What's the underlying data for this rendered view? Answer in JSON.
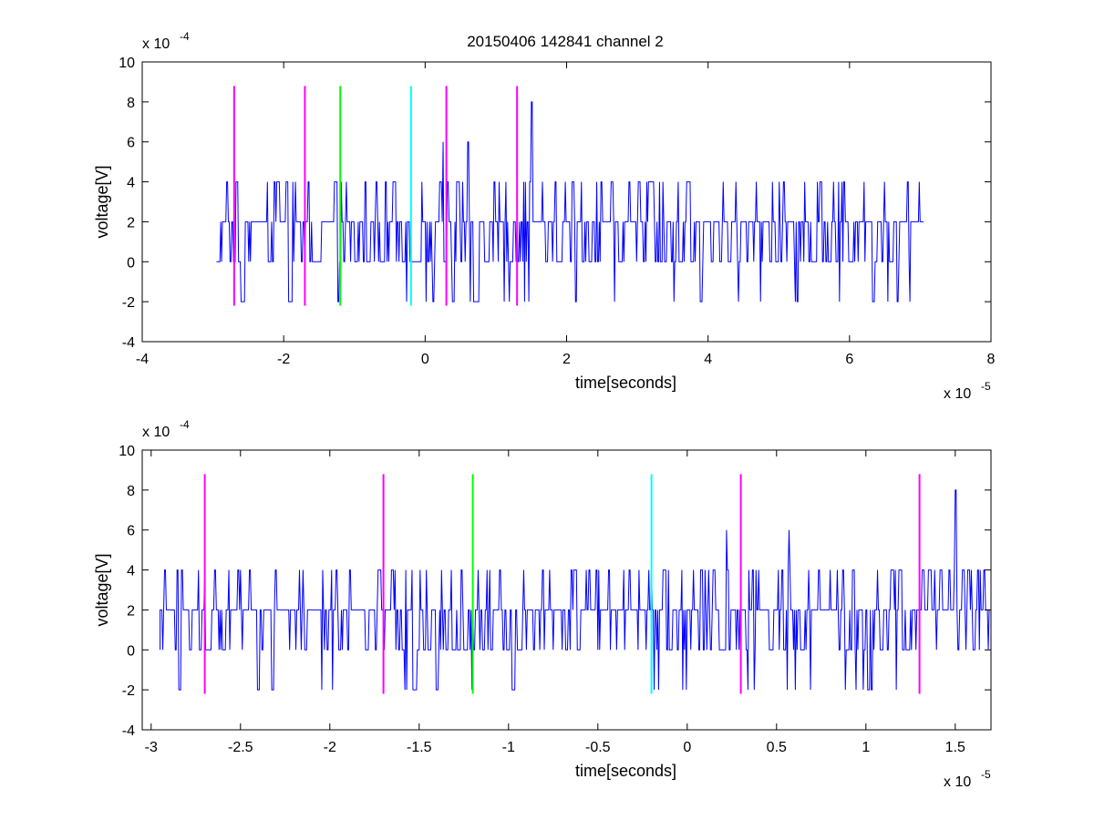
{
  "figure": {
    "title": "20150406 142841 channel 2"
  },
  "colors": {
    "signal": "#0000ff",
    "magenta": "#ff00ff",
    "green": "#00ff00",
    "cyan": "#00ffff",
    "axes": "#000000",
    "background": "#ffffff"
  },
  "chart_data": [
    {
      "type": "line",
      "name": "top-panel",
      "title": "20150406 142841 channel 2",
      "xlabel": "time[seconds]",
      "ylabel": "voltage[V]",
      "x_exponent_label": "x 10",
      "x_exponent": "-5",
      "y_exponent_label": "x 10",
      "y_exponent": "-4",
      "xlim": [
        -4e-05,
        8e-05
      ],
      "ylim": [
        -0.0004,
        0.001
      ],
      "xticks": [
        -4,
        -2,
        0,
        2,
        4,
        6,
        8
      ],
      "xtick_labels": [
        "-4",
        "-2",
        "0",
        "2",
        "4",
        "6",
        "8"
      ],
      "yticks": [
        -4,
        -2,
        0,
        2,
        4,
        6,
        8,
        10
      ],
      "ytick_labels": [
        "-4",
        "-2",
        "0",
        "2",
        "4",
        "6",
        "8",
        "10"
      ],
      "grid": false,
      "signal": {
        "x_start": -2.95e-05,
        "x_end": 7.05e-05,
        "levels": [
          -0.0002,
          0,
          0.0002,
          0.0004
        ],
        "peaks": [
          {
            "x": 2.5e-06,
            "y": 0.0006
          },
          {
            "x": 6e-06,
            "y": 0.0006
          },
          {
            "x": 1.5e-05,
            "y": 0.0008
          }
        ]
      },
      "markers": [
        {
          "x": -2.7e-05,
          "color": "magenta",
          "y_range": [
            -0.00022,
            0.00088
          ]
        },
        {
          "x": -1.7e-05,
          "color": "magenta",
          "y_range": [
            -0.00022,
            0.00088
          ]
        },
        {
          "x": -1.2e-05,
          "color": "green",
          "y_range": [
            -0.00022,
            0.00088
          ]
        },
        {
          "x": -2e-06,
          "color": "cyan",
          "y_range": [
            -0.00022,
            0.00088
          ]
        },
        {
          "x": 3e-06,
          "color": "magenta",
          "y_range": [
            -0.00022,
            0.00088
          ]
        },
        {
          "x": 1.3e-05,
          "color": "magenta",
          "y_range": [
            -0.00022,
            0.00088
          ]
        }
      ]
    },
    {
      "type": "line",
      "name": "bottom-panel",
      "title": "",
      "xlabel": "time[seconds]",
      "ylabel": "voltage[V]",
      "x_exponent_label": "x 10",
      "x_exponent": "-5",
      "y_exponent_label": "x 10",
      "y_exponent": "-4",
      "xlim": [
        -3.05e-05,
        1.7e-05
      ],
      "ylim": [
        -0.0004,
        0.001
      ],
      "xticks": [
        -3,
        -2.5,
        -2,
        -1.5,
        -1,
        -0.5,
        0,
        0.5,
        1,
        1.5
      ],
      "xtick_labels": [
        "-3",
        "-2.5",
        "-2",
        "-1.5",
        "-1",
        "-0.5",
        "0",
        "0.5",
        "1",
        "1.5"
      ],
      "yticks": [
        -4,
        -2,
        0,
        2,
        4,
        6,
        8,
        10
      ],
      "ytick_labels": [
        "-4",
        "-2",
        "0",
        "2",
        "4",
        "6",
        "8",
        "10"
      ],
      "grid": false,
      "signal": {
        "x_start": -2.95e-05,
        "x_end": 1.7e-05,
        "levels": [
          -0.0002,
          0,
          0.0002,
          0.0004
        ],
        "peaks": [
          {
            "x": 2.2e-06,
            "y": 0.0006
          },
          {
            "x": 5.7e-06,
            "y": 0.0006
          },
          {
            "x": 1.5e-05,
            "y": 0.0008
          }
        ]
      },
      "markers": [
        {
          "x": -2.7e-05,
          "color": "magenta",
          "y_range": [
            -0.00022,
            0.00088
          ]
        },
        {
          "x": -1.7e-05,
          "color": "magenta",
          "y_range": [
            -0.00022,
            0.00088
          ]
        },
        {
          "x": -1.2e-05,
          "color": "green",
          "y_range": [
            -0.00022,
            0.00088
          ]
        },
        {
          "x": -2e-06,
          "color": "cyan",
          "y_range": [
            -0.00022,
            0.00088
          ]
        },
        {
          "x": 3e-06,
          "color": "magenta",
          "y_range": [
            -0.00022,
            0.00088
          ]
        },
        {
          "x": 1.3e-05,
          "color": "magenta",
          "y_range": [
            -0.00022,
            0.00088
          ]
        }
      ]
    }
  ]
}
